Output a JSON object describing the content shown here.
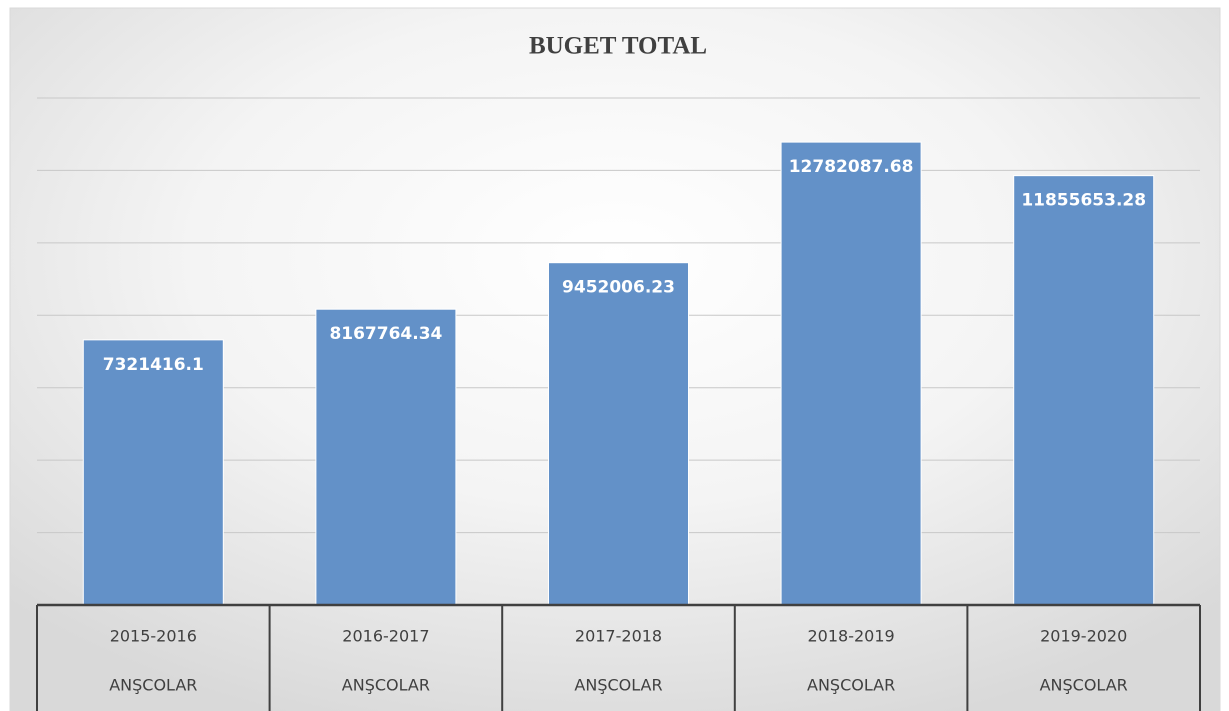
{
  "chart_data": {
    "type": "bar",
    "title": "BUGET TOTAL",
    "categories": [
      "2015-2016",
      "2016-2017",
      "2017-2018",
      "2018-2019",
      "2019-2020"
    ],
    "sub_categories": [
      "ANŞCOLAR",
      "ANŞCOLAR",
      "ANŞCOLAR",
      "ANŞCOLAR",
      "ANŞCOLAR"
    ],
    "values": [
      7321416.1,
      8167764.34,
      9452006.23,
      12782087.68,
      11855653.28
    ],
    "color": "#6391c8",
    "ylim": [
      0,
      14000000
    ],
    "yticks": [
      0,
      2000000,
      4000000,
      6000000,
      8000000,
      10000000,
      12000000,
      14000000
    ],
    "grid": true
  }
}
